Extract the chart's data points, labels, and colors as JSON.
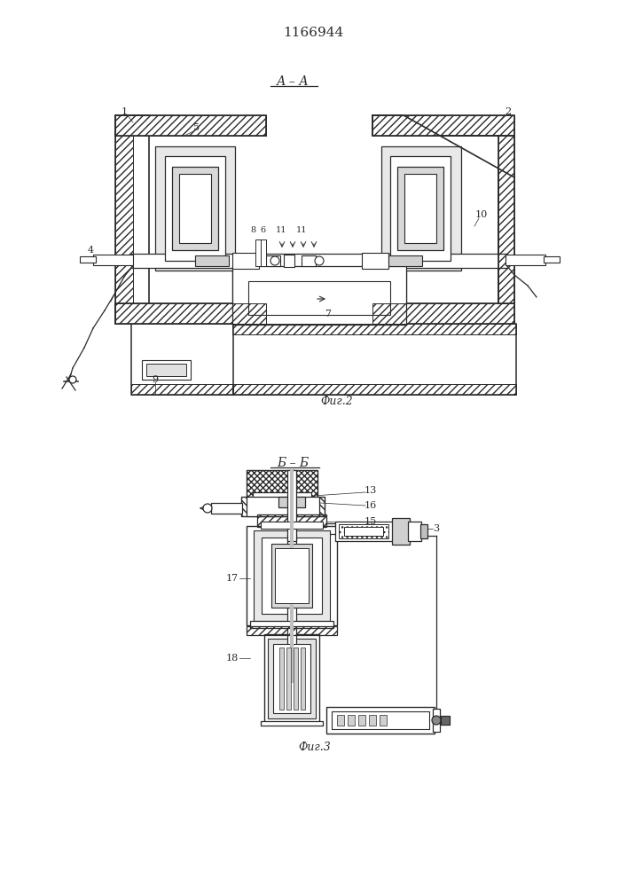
{
  "patent_number": "1166944",
  "fig2_label": "А – А",
  "fig2_caption": "Фиг.2",
  "fig3_label": "Б – Б",
  "fig3_caption": "Фиг.3",
  "bg_color": "#ffffff",
  "line_color": "#2a2a2a",
  "light_fill": "#e8e8e8",
  "mid_fill": "#d0d0d0",
  "white_fill": "#ffffff",
  "hatch_fill": "#f0f0f0"
}
